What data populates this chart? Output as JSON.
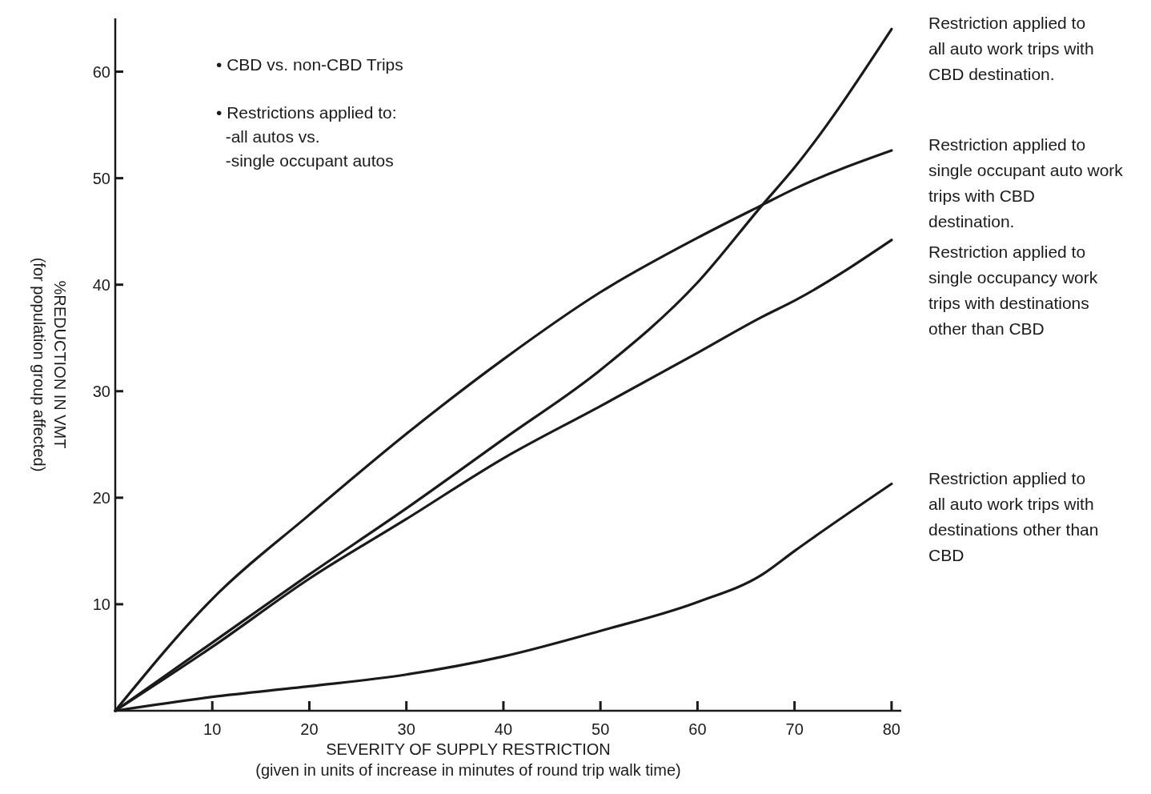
{
  "chart_data": {
    "type": "line",
    "xlabel": "SEVERITY OF SUPPLY RESTRICTION\n(given in units of increase in minutes of round trip walk time)",
    "ylabel": "%REDUCTION IN VMT\n(for population group affected)",
    "x": [
      0,
      10,
      20,
      30,
      40,
      50,
      60,
      66.7,
      70,
      80
    ],
    "xlim": [
      0,
      81
    ],
    "xticks": [
      10,
      20,
      30,
      40,
      50,
      60,
      70,
      80
    ],
    "ylim": [
      0,
      65
    ],
    "yticks": [
      10,
      20,
      30,
      40,
      50,
      60
    ],
    "line_style": "solid",
    "annotations": [
      "• CBD vs. non-CBD Trips",
      "• Restrictions applied to:\n  -all autos vs.\n  -single occupant autos"
    ],
    "series": [
      {
        "name": "Restriction applied to all auto work trips with CBD destination.",
        "color": "#1a1a1a",
        "values": [
          0,
          6.4,
          12.8,
          19,
          25.5,
          32,
          40.2,
          47.5,
          51,
          64
        ]
      },
      {
        "name": "Restriction applied to single occupant auto work trips with CBD destination.",
        "color": "#1a1a1a",
        "values": [
          0,
          10.5,
          18.4,
          26,
          33,
          39.3,
          44.4,
          47.5,
          49,
          52.6
        ]
      },
      {
        "name": "Restriction applied to single occupancy work trips with destinations other than CBD",
        "color": "#1a1a1a",
        "values": [
          0,
          6,
          12.4,
          18,
          23.7,
          28.6,
          33.6,
          37,
          38.5,
          44.2
        ]
      },
      {
        "name": "Restriction applied to all auto work trips with destinations other than CBD",
        "color": "#1a1a1a",
        "values": [
          0,
          1.3,
          2.3,
          3.4,
          5.1,
          7.5,
          10.2,
          12.8,
          15,
          21.3
        ]
      }
    ]
  }
}
